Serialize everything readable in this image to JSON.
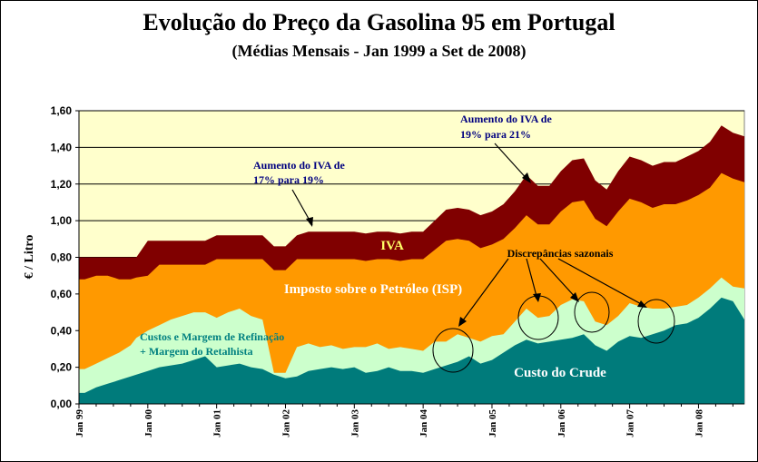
{
  "chart_data": {
    "type": "area",
    "title": "Evolução do Preço da Gasolina 95 em Portugal",
    "subtitle": "(Médias Mensais - Jan 1999 a Set de 2008)",
    "ylabel": "€ / Litro",
    "xlabel": "",
    "ylim": [
      0,
      1.6
    ],
    "yticks": [
      "0,00",
      "0,20",
      "0,40",
      "0,60",
      "0,80",
      "1,00",
      "1,20",
      "1,40",
      "1,60"
    ],
    "x_ticks": [
      "Jan 99",
      "Jan 00",
      "Jan 01",
      "Jan 02",
      "Jan 03",
      "Jan 04",
      "Jan 05",
      "Jan 06",
      "Jan 07",
      "Jan 08"
    ],
    "x_range_months": [
      0,
      116
    ],
    "x_knots": [
      0,
      1,
      3,
      5,
      7,
      9,
      10,
      12,
      14,
      16,
      18,
      20,
      22,
      24,
      26,
      28,
      30,
      32,
      34,
      36,
      38,
      40,
      42,
      44,
      46,
      48,
      50,
      52,
      54,
      56,
      58,
      60,
      62,
      64,
      66,
      68,
      70,
      72,
      74,
      76,
      78,
      80,
      82,
      84,
      86,
      88,
      90,
      92,
      94,
      96,
      98,
      100,
      102,
      104,
      106,
      108,
      110,
      112,
      114,
      116
    ],
    "series": [
      {
        "name": "Custo do Crude",
        "color": "#007b7b",
        "values": [
          0.06,
          0.06,
          0.09,
          0.11,
          0.13,
          0.15,
          0.16,
          0.18,
          0.2,
          0.21,
          0.22,
          0.24,
          0.26,
          0.2,
          0.21,
          0.22,
          0.2,
          0.19,
          0.16,
          0.14,
          0.15,
          0.18,
          0.19,
          0.2,
          0.19,
          0.2,
          0.17,
          0.18,
          0.2,
          0.18,
          0.18,
          0.17,
          0.19,
          0.21,
          0.23,
          0.26,
          0.22,
          0.24,
          0.28,
          0.32,
          0.35,
          0.33,
          0.34,
          0.35,
          0.36,
          0.38,
          0.32,
          0.29,
          0.34,
          0.37,
          0.36,
          0.38,
          0.4,
          0.43,
          0.44,
          0.47,
          0.52,
          0.58,
          0.56,
          0.46
        ]
      },
      {
        "name": "Custos e Margem de Refinação + Margem do Retalhista",
        "color": "#ccffcc",
        "values": [
          0.19,
          0.19,
          0.22,
          0.25,
          0.28,
          0.32,
          0.36,
          0.4,
          0.43,
          0.46,
          0.48,
          0.5,
          0.5,
          0.47,
          0.5,
          0.52,
          0.48,
          0.46,
          0.17,
          0.17,
          0.31,
          0.33,
          0.31,
          0.32,
          0.3,
          0.31,
          0.31,
          0.33,
          0.3,
          0.31,
          0.3,
          0.29,
          0.34,
          0.34,
          0.38,
          0.36,
          0.34,
          0.37,
          0.38,
          0.45,
          0.52,
          0.47,
          0.48,
          0.54,
          0.57,
          0.56,
          0.45,
          0.43,
          0.48,
          0.55,
          0.53,
          0.52,
          0.52,
          0.53,
          0.54,
          0.58,
          0.63,
          0.69,
          0.64,
          0.63
        ]
      },
      {
        "name": "Imposto sobre o Petróleo (ISP)",
        "color": "#ff9900",
        "values": [
          0.68,
          0.68,
          0.7,
          0.7,
          0.68,
          0.68,
          0.69,
          0.7,
          0.76,
          0.76,
          0.76,
          0.76,
          0.76,
          0.79,
          0.79,
          0.79,
          0.79,
          0.79,
          0.73,
          0.73,
          0.79,
          0.79,
          0.79,
          0.79,
          0.79,
          0.79,
          0.78,
          0.79,
          0.79,
          0.78,
          0.79,
          0.79,
          0.84,
          0.89,
          0.9,
          0.89,
          0.85,
          0.87,
          0.9,
          0.96,
          1.03,
          0.98,
          0.98,
          1.05,
          1.1,
          1.11,
          1.01,
          0.97,
          1.05,
          1.12,
          1.1,
          1.07,
          1.09,
          1.09,
          1.11,
          1.14,
          1.18,
          1.26,
          1.23,
          1.21
        ]
      },
      {
        "name": "IVA",
        "color": "#800000",
        "values": [
          0.8,
          0.8,
          0.8,
          0.8,
          0.8,
          0.8,
          0.8,
          0.89,
          0.89,
          0.89,
          0.89,
          0.89,
          0.89,
          0.92,
          0.92,
          0.92,
          0.92,
          0.92,
          0.86,
          0.86,
          0.92,
          0.94,
          0.94,
          0.94,
          0.94,
          0.94,
          0.93,
          0.94,
          0.94,
          0.93,
          0.94,
          0.94,
          1.0,
          1.06,
          1.07,
          1.06,
          1.03,
          1.05,
          1.09,
          1.16,
          1.25,
          1.19,
          1.19,
          1.27,
          1.33,
          1.34,
          1.22,
          1.17,
          1.27,
          1.35,
          1.33,
          1.3,
          1.32,
          1.32,
          1.35,
          1.38,
          1.43,
          1.52,
          1.48,
          1.46
        ]
      }
    ],
    "annotations": {
      "iva": "IVA",
      "isp": "Imposto sobre o Petróleo (ISP)",
      "refining_line1": "Custos e Margem de Refinação",
      "refining_line2": "+ Margem do Retalhista",
      "crude": "Custo do Crude",
      "vat_17_line1": "Aumento do IVA de",
      "vat_17_line2": "17% para 19%",
      "vat_19_line1": "Aumento do IVA de",
      "vat_19_line2": "19% para 21%",
      "seasonal": "Discrepâncias sazonais"
    },
    "grid": true,
    "background_color": "#ffffcc"
  }
}
